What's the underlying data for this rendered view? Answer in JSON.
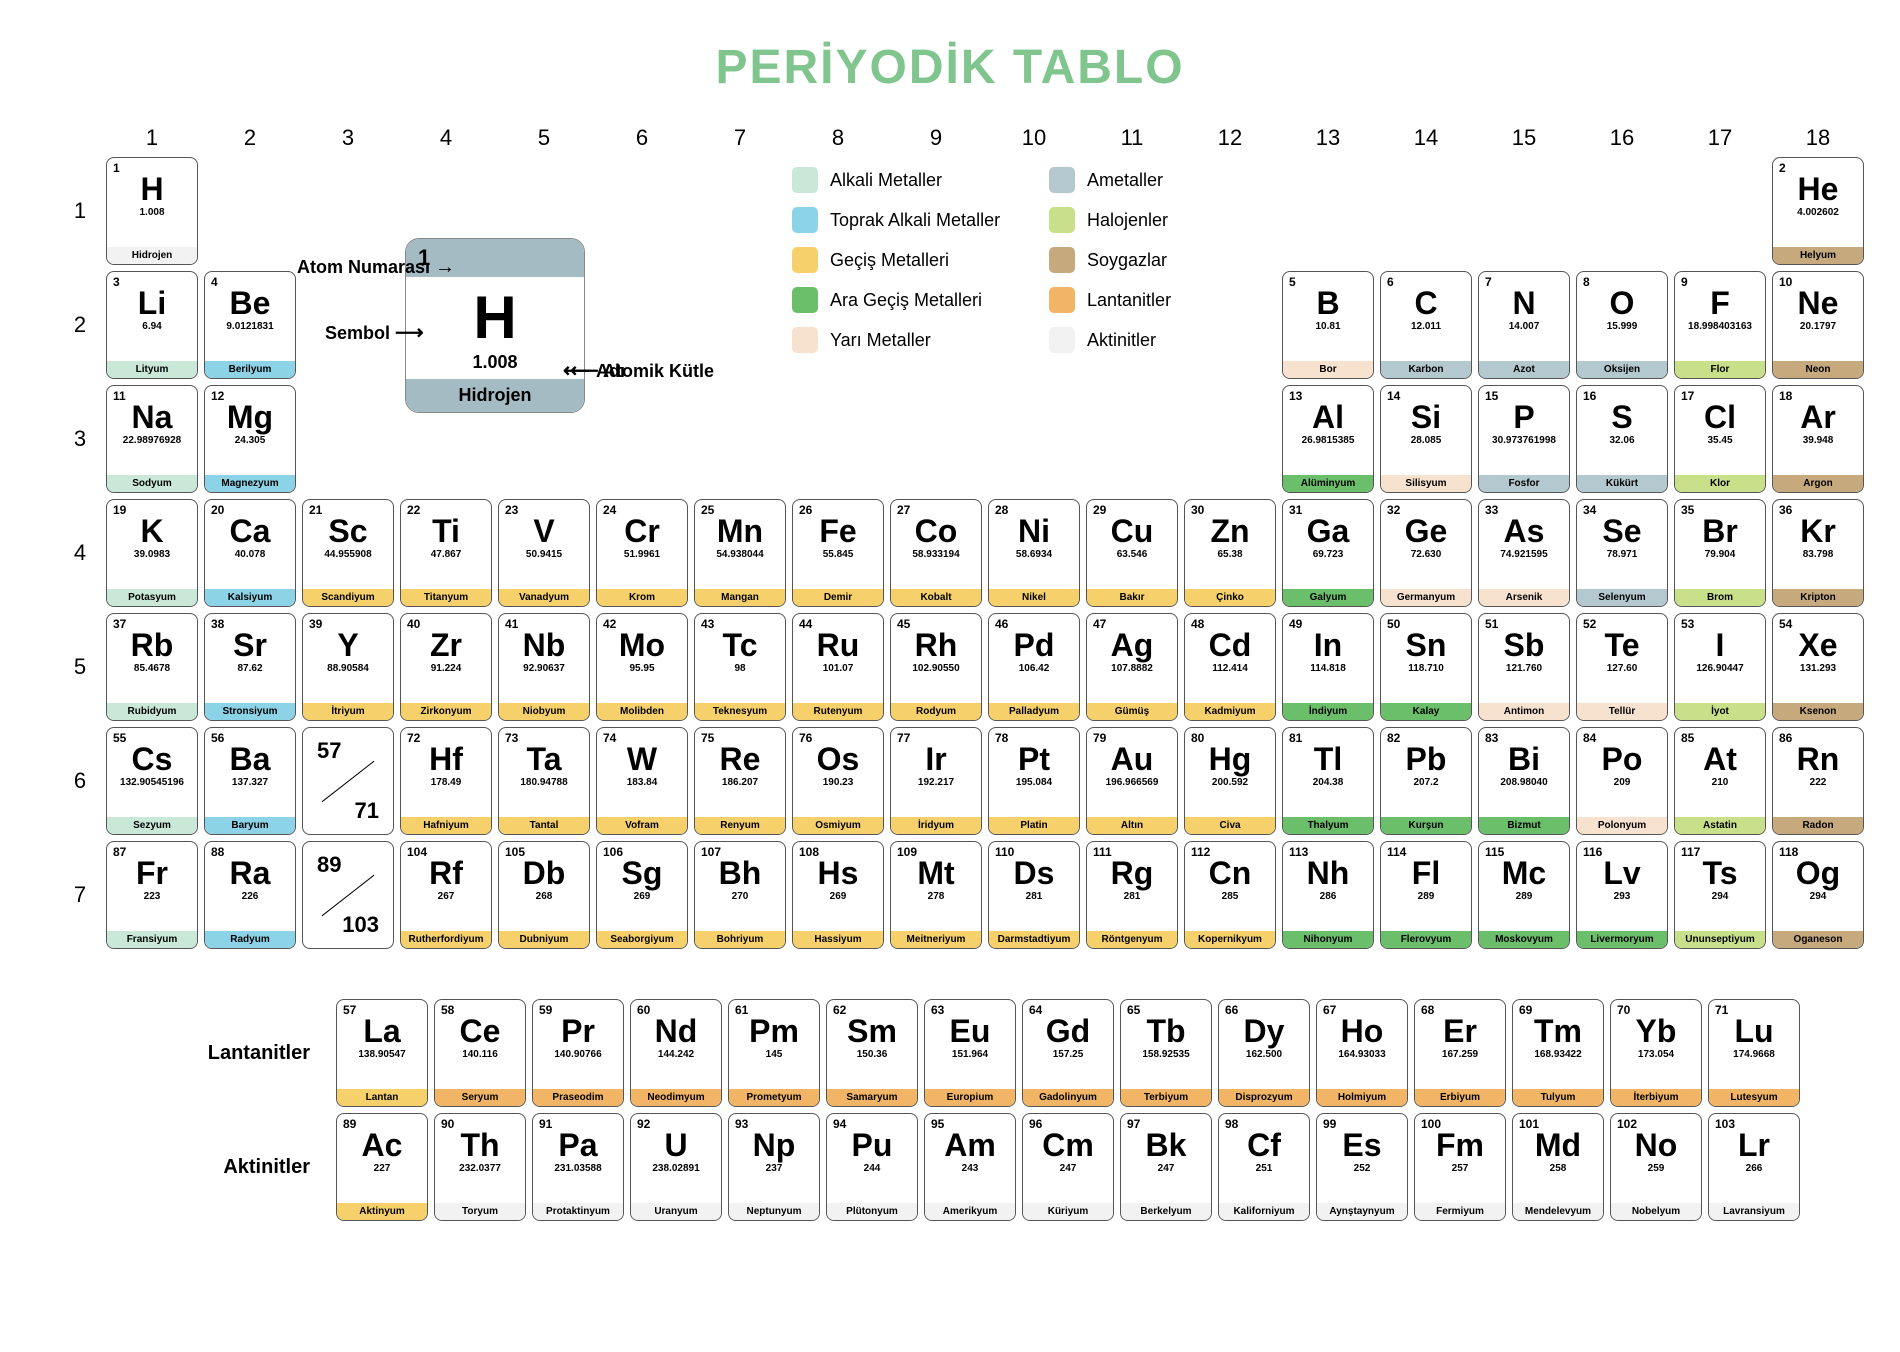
{
  "title": "PERİYODİK TABLO",
  "title_color": "#7fc58d",
  "background_color": "#ffffff",
  "groups": [
    "1",
    "2",
    "3",
    "4",
    "5",
    "6",
    "7",
    "8",
    "9",
    "10",
    "11",
    "12",
    "13",
    "14",
    "15",
    "16",
    "17",
    "18"
  ],
  "periods": [
    "1",
    "2",
    "3",
    "4",
    "5",
    "6",
    "7"
  ],
  "key": {
    "num": "1",
    "sym": "H",
    "mass": "1.008",
    "name": "Hidrojen",
    "labels": {
      "atom_number": "Atom Numarası",
      "symbol": "Sembol",
      "atomic_mass": "Atomik Kütle",
      "name_label": "Adı"
    },
    "header_color": "#a5bbc4"
  },
  "categories": {
    "alkali": {
      "label": "Alkali Metaller",
      "color": "#c9e8d7"
    },
    "alkaline": {
      "label": "Toprak Alkali Metaller",
      "color": "#8dd3e8"
    },
    "transition": {
      "label": "Geçiş Metalleri",
      "color": "#f6d16b"
    },
    "posttrans": {
      "label": "Ara Geçiş Metalleri",
      "color": "#6bbf6b"
    },
    "metalloid": {
      "label": "Yarı Metaller",
      "color": "#f7e1cf"
    },
    "nonmetal": {
      "label": "Ametaller",
      "color": "#b4c8cf"
    },
    "halogen": {
      "label": "Halojenler",
      "color": "#c9e08b"
    },
    "noble": {
      "label": "Soygazlar",
      "color": "#c7a97e"
    },
    "lanthanide": {
      "label": "Lantanitler",
      "color": "#f2b565"
    },
    "actinide": {
      "label": "Aktinitler",
      "color": "#f2f2f2"
    }
  },
  "legend_order": [
    "alkali",
    "nonmetal",
    "alkaline",
    "halogen",
    "transition",
    "noble",
    "posttrans",
    "lanthanide",
    "metalloid",
    "actinide"
  ],
  "f_labels": {
    "lan": "Lantanitler",
    "act": "Aktinitler"
  },
  "placeholders": {
    "lan": [
      "57",
      "71"
    ],
    "act": [
      "89",
      "103"
    ]
  },
  "elements": [
    {
      "n": "1",
      "s": "H",
      "m": "1.008",
      "name": "Hidrojen",
      "p": 1,
      "g": 1,
      "cat": "actinide"
    },
    {
      "n": "2",
      "s": "He",
      "m": "4.002602",
      "name": "Helyum",
      "p": 1,
      "g": 18,
      "cat": "noble"
    },
    {
      "n": "3",
      "s": "Li",
      "m": "6.94",
      "name": "Lityum",
      "p": 2,
      "g": 1,
      "cat": "alkali"
    },
    {
      "n": "4",
      "s": "Be",
      "m": "9.0121831",
      "name": "Berilyum",
      "p": 2,
      "g": 2,
      "cat": "alkaline"
    },
    {
      "n": "5",
      "s": "B",
      "m": "10.81",
      "name": "Bor",
      "p": 2,
      "g": 13,
      "cat": "metalloid"
    },
    {
      "n": "6",
      "s": "C",
      "m": "12.011",
      "name": "Karbon",
      "p": 2,
      "g": 14,
      "cat": "nonmetal"
    },
    {
      "n": "7",
      "s": "N",
      "m": "14.007",
      "name": "Azot",
      "p": 2,
      "g": 15,
      "cat": "nonmetal"
    },
    {
      "n": "8",
      "s": "O",
      "m": "15.999",
      "name": "Oksijen",
      "p": 2,
      "g": 16,
      "cat": "nonmetal"
    },
    {
      "n": "9",
      "s": "F",
      "m": "18.998403163",
      "name": "Flor",
      "p": 2,
      "g": 17,
      "cat": "halogen"
    },
    {
      "n": "10",
      "s": "Ne",
      "m": "20.1797",
      "name": "Neon",
      "p": 2,
      "g": 18,
      "cat": "noble"
    },
    {
      "n": "11",
      "s": "Na",
      "m": "22.98976928",
      "name": "Sodyum",
      "p": 3,
      "g": 1,
      "cat": "alkali"
    },
    {
      "n": "12",
      "s": "Mg",
      "m": "24.305",
      "name": "Magnezyum",
      "p": 3,
      "g": 2,
      "cat": "alkaline"
    },
    {
      "n": "13",
      "s": "Al",
      "m": "26.9815385",
      "name": "Alüminyum",
      "p": 3,
      "g": 13,
      "cat": "posttrans"
    },
    {
      "n": "14",
      "s": "Si",
      "m": "28.085",
      "name": "Silisyum",
      "p": 3,
      "g": 14,
      "cat": "metalloid"
    },
    {
      "n": "15",
      "s": "P",
      "m": "30.973761998",
      "name": "Fosfor",
      "p": 3,
      "g": 15,
      "cat": "nonmetal"
    },
    {
      "n": "16",
      "s": "S",
      "m": "32.06",
      "name": "Kükürt",
      "p": 3,
      "g": 16,
      "cat": "nonmetal"
    },
    {
      "n": "17",
      "s": "Cl",
      "m": "35.45",
      "name": "Klor",
      "p": 3,
      "g": 17,
      "cat": "halogen"
    },
    {
      "n": "18",
      "s": "Ar",
      "m": "39.948",
      "name": "Argon",
      "p": 3,
      "g": 18,
      "cat": "noble"
    },
    {
      "n": "19",
      "s": "K",
      "m": "39.0983",
      "name": "Potasyum",
      "p": 4,
      "g": 1,
      "cat": "alkali"
    },
    {
      "n": "20",
      "s": "Ca",
      "m": "40.078",
      "name": "Kalsiyum",
      "p": 4,
      "g": 2,
      "cat": "alkaline"
    },
    {
      "n": "21",
      "s": "Sc",
      "m": "44.955908",
      "name": "Scandiyum",
      "p": 4,
      "g": 3,
      "cat": "transition"
    },
    {
      "n": "22",
      "s": "Ti",
      "m": "47.867",
      "name": "Titanyum",
      "p": 4,
      "g": 4,
      "cat": "transition"
    },
    {
      "n": "23",
      "s": "V",
      "m": "50.9415",
      "name": "Vanadyum",
      "p": 4,
      "g": 5,
      "cat": "transition"
    },
    {
      "n": "24",
      "s": "Cr",
      "m": "51.9961",
      "name": "Krom",
      "p": 4,
      "g": 6,
      "cat": "transition"
    },
    {
      "n": "25",
      "s": "Mn",
      "m": "54.938044",
      "name": "Mangan",
      "p": 4,
      "g": 7,
      "cat": "transition"
    },
    {
      "n": "26",
      "s": "Fe",
      "m": "55.845",
      "name": "Demir",
      "p": 4,
      "g": 8,
      "cat": "transition"
    },
    {
      "n": "27",
      "s": "Co",
      "m": "58.933194",
      "name": "Kobalt",
      "p": 4,
      "g": 9,
      "cat": "transition"
    },
    {
      "n": "28",
      "s": "Ni",
      "m": "58.6934",
      "name": "Nikel",
      "p": 4,
      "g": 10,
      "cat": "transition"
    },
    {
      "n": "29",
      "s": "Cu",
      "m": "63.546",
      "name": "Bakır",
      "p": 4,
      "g": 11,
      "cat": "transition"
    },
    {
      "n": "30",
      "s": "Zn",
      "m": "65.38",
      "name": "Çinko",
      "p": 4,
      "g": 12,
      "cat": "transition"
    },
    {
      "n": "31",
      "s": "Ga",
      "m": "69.723",
      "name": "Galyum",
      "p": 4,
      "g": 13,
      "cat": "posttrans"
    },
    {
      "n": "32",
      "s": "Ge",
      "m": "72.630",
      "name": "Germanyum",
      "p": 4,
      "g": 14,
      "cat": "metalloid"
    },
    {
      "n": "33",
      "s": "As",
      "m": "74.921595",
      "name": "Arsenik",
      "p": 4,
      "g": 15,
      "cat": "metalloid"
    },
    {
      "n": "34",
      "s": "Se",
      "m": "78.971",
      "name": "Selenyum",
      "p": 4,
      "g": 16,
      "cat": "nonmetal"
    },
    {
      "n": "35",
      "s": "Br",
      "m": "79.904",
      "name": "Brom",
      "p": 4,
      "g": 17,
      "cat": "halogen"
    },
    {
      "n": "36",
      "s": "Kr",
      "m": "83.798",
      "name": "Kripton",
      "p": 4,
      "g": 18,
      "cat": "noble"
    },
    {
      "n": "37",
      "s": "Rb",
      "m": "85.4678",
      "name": "Rubidyum",
      "p": 5,
      "g": 1,
      "cat": "alkali"
    },
    {
      "n": "38",
      "s": "Sr",
      "m": "87.62",
      "name": "Stronsiyum",
      "p": 5,
      "g": 2,
      "cat": "alkaline"
    },
    {
      "n": "39",
      "s": "Y",
      "m": "88.90584",
      "name": "İtriyum",
      "p": 5,
      "g": 3,
      "cat": "transition"
    },
    {
      "n": "40",
      "s": "Zr",
      "m": "91.224",
      "name": "Zirkonyum",
      "p": 5,
      "g": 4,
      "cat": "transition"
    },
    {
      "n": "41",
      "s": "Nb",
      "m": "92.90637",
      "name": "Niobyum",
      "p": 5,
      "g": 5,
      "cat": "transition"
    },
    {
      "n": "42",
      "s": "Mo",
      "m": "95.95",
      "name": "Molibden",
      "p": 5,
      "g": 6,
      "cat": "transition"
    },
    {
      "n": "43",
      "s": "Tc",
      "m": "98",
      "name": "Teknesyum",
      "p": 5,
      "g": 7,
      "cat": "transition"
    },
    {
      "n": "44",
      "s": "Ru",
      "m": "101.07",
      "name": "Rutenyum",
      "p": 5,
      "g": 8,
      "cat": "transition"
    },
    {
      "n": "45",
      "s": "Rh",
      "m": "102.90550",
      "name": "Rodyum",
      "p": 5,
      "g": 9,
      "cat": "transition"
    },
    {
      "n": "46",
      "s": "Pd",
      "m": "106.42",
      "name": "Palladyum",
      "p": 5,
      "g": 10,
      "cat": "transition"
    },
    {
      "n": "47",
      "s": "Ag",
      "m": "107.8882",
      "name": "Gümüş",
      "p": 5,
      "g": 11,
      "cat": "transition"
    },
    {
      "n": "48",
      "s": "Cd",
      "m": "112.414",
      "name": "Kadmiyum",
      "p": 5,
      "g": 12,
      "cat": "transition"
    },
    {
      "n": "49",
      "s": "In",
      "m": "114.818",
      "name": "İndiyum",
      "p": 5,
      "g": 13,
      "cat": "posttrans"
    },
    {
      "n": "50",
      "s": "Sn",
      "m": "118.710",
      "name": "Kalay",
      "p": 5,
      "g": 14,
      "cat": "posttrans"
    },
    {
      "n": "51",
      "s": "Sb",
      "m": "121.760",
      "name": "Antimon",
      "p": 5,
      "g": 15,
      "cat": "metalloid"
    },
    {
      "n": "52",
      "s": "Te",
      "m": "127.60",
      "name": "Tellür",
      "p": 5,
      "g": 16,
      "cat": "metalloid"
    },
    {
      "n": "53",
      "s": "I",
      "m": "126.90447",
      "name": "İyot",
      "p": 5,
      "g": 17,
      "cat": "halogen"
    },
    {
      "n": "54",
      "s": "Xe",
      "m": "131.293",
      "name": "Ksenon",
      "p": 5,
      "g": 18,
      "cat": "noble"
    },
    {
      "n": "55",
      "s": "Cs",
      "m": "132.90545196",
      "name": "Sezyum",
      "p": 6,
      "g": 1,
      "cat": "alkali"
    },
    {
      "n": "56",
      "s": "Ba",
      "m": "137.327",
      "name": "Baryum",
      "p": 6,
      "g": 2,
      "cat": "alkaline"
    },
    {
      "n": "72",
      "s": "Hf",
      "m": "178.49",
      "name": "Hafniyum",
      "p": 6,
      "g": 4,
      "cat": "transition"
    },
    {
      "n": "73",
      "s": "Ta",
      "m": "180.94788",
      "name": "Tantal",
      "p": 6,
      "g": 5,
      "cat": "transition"
    },
    {
      "n": "74",
      "s": "W",
      "m": "183.84",
      "name": "Vofram",
      "p": 6,
      "g": 6,
      "cat": "transition"
    },
    {
      "n": "75",
      "s": "Re",
      "m": "186.207",
      "name": "Renyum",
      "p": 6,
      "g": 7,
      "cat": "transition"
    },
    {
      "n": "76",
      "s": "Os",
      "m": "190.23",
      "name": "Osmiyum",
      "p": 6,
      "g": 8,
      "cat": "transition"
    },
    {
      "n": "77",
      "s": "Ir",
      "m": "192.217",
      "name": "İridyum",
      "p": 6,
      "g": 9,
      "cat": "transition"
    },
    {
      "n": "78",
      "s": "Pt",
      "m": "195.084",
      "name": "Platin",
      "p": 6,
      "g": 10,
      "cat": "transition"
    },
    {
      "n": "79",
      "s": "Au",
      "m": "196.966569",
      "name": "Altın",
      "p": 6,
      "g": 11,
      "cat": "transition"
    },
    {
      "n": "80",
      "s": "Hg",
      "m": "200.592",
      "name": "Civa",
      "p": 6,
      "g": 12,
      "cat": "transition"
    },
    {
      "n": "81",
      "s": "Tl",
      "m": "204.38",
      "name": "Thalyum",
      "p": 6,
      "g": 13,
      "cat": "posttrans"
    },
    {
      "n": "82",
      "s": "Pb",
      "m": "207.2",
      "name": "Kurşun",
      "p": 6,
      "g": 14,
      "cat": "posttrans"
    },
    {
      "n": "83",
      "s": "Bi",
      "m": "208.98040",
      "name": "Bizmut",
      "p": 6,
      "g": 15,
      "cat": "posttrans"
    },
    {
      "n": "84",
      "s": "Po",
      "m": "209",
      "name": "Polonyum",
      "p": 6,
      "g": 16,
      "cat": "metalloid"
    },
    {
      "n": "85",
      "s": "At",
      "m": "210",
      "name": "Astatin",
      "p": 6,
      "g": 17,
      "cat": "halogen"
    },
    {
      "n": "86",
      "s": "Rn",
      "m": "222",
      "name": "Radon",
      "p": 6,
      "g": 18,
      "cat": "noble"
    },
    {
      "n": "87",
      "s": "Fr",
      "m": "223",
      "name": "Fransiyum",
      "p": 7,
      "g": 1,
      "cat": "alkali"
    },
    {
      "n": "88",
      "s": "Ra",
      "m": "226",
      "name": "Radyum",
      "p": 7,
      "g": 2,
      "cat": "alkaline"
    },
    {
      "n": "104",
      "s": "Rf",
      "m": "267",
      "name": "Rutherfordiyum",
      "p": 7,
      "g": 4,
      "cat": "transition"
    },
    {
      "n": "105",
      "s": "Db",
      "m": "268",
      "name": "Dubniyum",
      "p": 7,
      "g": 5,
      "cat": "transition"
    },
    {
      "n": "106",
      "s": "Sg",
      "m": "269",
      "name": "Seaborgiyum",
      "p": 7,
      "g": 6,
      "cat": "transition"
    },
    {
      "n": "107",
      "s": "Bh",
      "m": "270",
      "name": "Bohriyum",
      "p": 7,
      "g": 7,
      "cat": "transition"
    },
    {
      "n": "108",
      "s": "Hs",
      "m": "269",
      "name": "Hassiyum",
      "p": 7,
      "g": 8,
      "cat": "transition"
    },
    {
      "n": "109",
      "s": "Mt",
      "m": "278",
      "name": "Meitneriyum",
      "p": 7,
      "g": 9,
      "cat": "transition"
    },
    {
      "n": "110",
      "s": "Ds",
      "m": "281",
      "name": "Darmstadtiyum",
      "p": 7,
      "g": 10,
      "cat": "transition"
    },
    {
      "n": "111",
      "s": "Rg",
      "m": "281",
      "name": "Röntgenyum",
      "p": 7,
      "g": 11,
      "cat": "transition"
    },
    {
      "n": "112",
      "s": "Cn",
      "m": "285",
      "name": "Kopernikyum",
      "p": 7,
      "g": 12,
      "cat": "transition"
    },
    {
      "n": "113",
      "s": "Nh",
      "m": "286",
      "name": "Nihonyum",
      "p": 7,
      "g": 13,
      "cat": "posttrans"
    },
    {
      "n": "114",
      "s": "Fl",
      "m": "289",
      "name": "Flerovyum",
      "p": 7,
      "g": 14,
      "cat": "posttrans"
    },
    {
      "n": "115",
      "s": "Mc",
      "m": "289",
      "name": "Moskovyum",
      "p": 7,
      "g": 15,
      "cat": "posttrans"
    },
    {
      "n": "116",
      "s": "Lv",
      "m": "293",
      "name": "Livermoryum",
      "p": 7,
      "g": 16,
      "cat": "posttrans"
    },
    {
      "n": "117",
      "s": "Ts",
      "m": "294",
      "name": "Ununseptiyum",
      "p": 7,
      "g": 17,
      "cat": "halogen"
    },
    {
      "n": "118",
      "s": "Og",
      "m": "294",
      "name": "Oganeson",
      "p": 7,
      "g": 18,
      "cat": "noble"
    }
  ],
  "lanthanides": [
    {
      "n": "57",
      "s": "La",
      "m": "138.90547",
      "name": "Lantan",
      "cat": "transition"
    },
    {
      "n": "58",
      "s": "Ce",
      "m": "140.116",
      "name": "Seryum",
      "cat": "lanthanide"
    },
    {
      "n": "59",
      "s": "Pr",
      "m": "140.90766",
      "name": "Praseodim",
      "cat": "lanthanide"
    },
    {
      "n": "60",
      "s": "Nd",
      "m": "144.242",
      "name": "Neodimyum",
      "cat": "lanthanide"
    },
    {
      "n": "61",
      "s": "Pm",
      "m": "145",
      "name": "Prometyum",
      "cat": "lanthanide"
    },
    {
      "n": "62",
      "s": "Sm",
      "m": "150.36",
      "name": "Samaryum",
      "cat": "lanthanide"
    },
    {
      "n": "63",
      "s": "Eu",
      "m": "151.964",
      "name": "Europium",
      "cat": "lanthanide"
    },
    {
      "n": "64",
      "s": "Gd",
      "m": "157.25",
      "name": "Gadolinyum",
      "cat": "lanthanide"
    },
    {
      "n": "65",
      "s": "Tb",
      "m": "158.92535",
      "name": "Terbiyum",
      "cat": "lanthanide"
    },
    {
      "n": "66",
      "s": "Dy",
      "m": "162.500",
      "name": "Disprozyum",
      "cat": "lanthanide"
    },
    {
      "n": "67",
      "s": "Ho",
      "m": "164.93033",
      "name": "Holmiyum",
      "cat": "lanthanide"
    },
    {
      "n": "68",
      "s": "Er",
      "m": "167.259",
      "name": "Erbiyum",
      "cat": "lanthanide"
    },
    {
      "n": "69",
      "s": "Tm",
      "m": "168.93422",
      "name": "Tulyum",
      "cat": "lanthanide"
    },
    {
      "n": "70",
      "s": "Yb",
      "m": "173.054",
      "name": "İterbiyum",
      "cat": "lanthanide"
    },
    {
      "n": "71",
      "s": "Lu",
      "m": "174.9668",
      "name": "Lutesyum",
      "cat": "lanthanide"
    }
  ],
  "actinides": [
    {
      "n": "89",
      "s": "Ac",
      "m": "227",
      "name": "Aktinyum",
      "cat": "transition"
    },
    {
      "n": "90",
      "s": "Th",
      "m": "232.0377",
      "name": "Toryum",
      "cat": "actinide"
    },
    {
      "n": "91",
      "s": "Pa",
      "m": "231.03588",
      "name": "Protaktinyum",
      "cat": "actinide"
    },
    {
      "n": "92",
      "s": "U",
      "m": "238.02891",
      "name": "Uranyum",
      "cat": "actinide"
    },
    {
      "n": "93",
      "s": "Np",
      "m": "237",
      "name": "Neptunyum",
      "cat": "actinide"
    },
    {
      "n": "94",
      "s": "Pu",
      "m": "244",
      "name": "Plütonyum",
      "cat": "actinide"
    },
    {
      "n": "95",
      "s": "Am",
      "m": "243",
      "name": "Amerikyum",
      "cat": "actinide"
    },
    {
      "n": "96",
      "s": "Cm",
      "m": "247",
      "name": "Küriyum",
      "cat": "actinide"
    },
    {
      "n": "97",
      "s": "Bk",
      "m": "247",
      "name": "Berkelyum",
      "cat": "actinide"
    },
    {
      "n": "98",
      "s": "Cf",
      "m": "251",
      "name": "Kaliforniyum",
      "cat": "actinide"
    },
    {
      "n": "99",
      "s": "Es",
      "m": "252",
      "name": "Aynştaynyum",
      "cat": "actinide"
    },
    {
      "n": "100",
      "s": "Fm",
      "m": "257",
      "name": "Fermiyum",
      "cat": "actinide"
    },
    {
      "n": "101",
      "s": "Md",
      "m": "258",
      "name": "Mendelevyum",
      "cat": "actinide"
    },
    {
      "n": "102",
      "s": "No",
      "m": "259",
      "name": "Nobelyum",
      "cat": "actinide"
    },
    {
      "n": "103",
      "s": "Lr",
      "m": "266",
      "name": "Lavransiyum",
      "cat": "actinide"
    }
  ]
}
